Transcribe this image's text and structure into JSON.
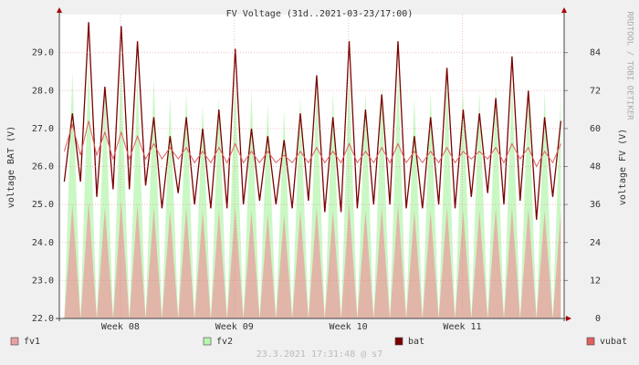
{
  "chart_data": {
    "type": "line",
    "title": "FV Voltage (31d..2021-03-23/17:00)",
    "y_label": "voltage BAT (V)",
    "y2_label": "voltage FV (V)",
    "watermark": "RRDTOOL / TOBI OETIKER",
    "footer": "23.3.2021 17:31:48 @ s7",
    "grid": true,
    "xlim": [
      0,
      31
    ],
    "xticks": [
      {
        "value": 3.75,
        "label": "Week 08"
      },
      {
        "value": 10.75,
        "label": "Week 09"
      },
      {
        "value": 17.75,
        "label": "Week 10"
      },
      {
        "value": 24.75,
        "label": "Week 11"
      }
    ],
    "ylim": [
      22,
      30
    ],
    "yticks": [
      {
        "value": 22,
        "label": "22.0"
      },
      {
        "value": 23,
        "label": "23.0"
      },
      {
        "value": 24,
        "label": "24.0"
      },
      {
        "value": 25,
        "label": "25.0"
      },
      {
        "value": 26,
        "label": "26.0"
      },
      {
        "value": 27,
        "label": "27.0"
      },
      {
        "value": 28,
        "label": "28.0"
      },
      {
        "value": 29,
        "label": "29.0"
      }
    ],
    "y2lim": [
      0,
      96
    ],
    "y2ticks": [
      0,
      12,
      24,
      36,
      48,
      60,
      72,
      84
    ],
    "x": [
      0.3,
      0.8,
      1.3,
      1.8,
      2.3,
      2.8,
      3.3,
      3.8,
      4.3,
      4.8,
      5.3,
      5.8,
      6.3,
      6.8,
      7.3,
      7.8,
      8.3,
      8.8,
      9.3,
      9.8,
      10.3,
      10.8,
      11.3,
      11.8,
      12.3,
      12.8,
      13.3,
      13.8,
      14.3,
      14.8,
      15.3,
      15.8,
      16.3,
      16.8,
      17.3,
      17.8,
      18.3,
      18.8,
      19.3,
      19.8,
      20.3,
      20.8,
      21.3,
      21.8,
      22.3,
      22.8,
      23.3,
      23.8,
      24.3,
      24.8,
      25.3,
      25.8,
      26.3,
      26.8,
      27.3,
      27.8,
      28.3,
      28.8,
      29.3,
      29.8,
      30.3,
      30.8
    ],
    "series": [
      {
        "name": "fv2",
        "color": "#b8f5b0",
        "type": "area",
        "axis": "y2",
        "values": [
          0,
          78,
          0,
          80,
          0,
          74,
          0,
          81,
          0,
          77,
          0,
          76,
          0,
          70,
          0,
          72,
          0,
          68,
          0,
          70,
          0,
          76,
          0,
          72,
          0,
          68,
          0,
          66,
          0,
          70,
          0,
          74,
          0,
          72,
          0,
          78,
          0,
          72,
          0,
          74,
          0,
          78,
          0,
          70,
          0,
          72,
          0,
          76,
          0,
          72,
          0,
          72,
          0,
          74,
          0,
          76,
          0,
          74,
          0,
          72,
          0,
          72
        ]
      },
      {
        "name": "fv1",
        "color": "#e8a0a0",
        "type": "area",
        "axis": "y2",
        "values": [
          0,
          36,
          0,
          37,
          0,
          35,
          0,
          37,
          0,
          36,
          0,
          35,
          0,
          34,
          0,
          35,
          0,
          34,
          0,
          34,
          0,
          35,
          0,
          34,
          0,
          33,
          0,
          33,
          0,
          34,
          0,
          35,
          0,
          34,
          0,
          36,
          0,
          34,
          0,
          35,
          0,
          36,
          0,
          34,
          0,
          34,
          0,
          35,
          0,
          34,
          0,
          34,
          0,
          35,
          0,
          35,
          0,
          35,
          0,
          34,
          0,
          34
        ]
      },
      {
        "name": "bat",
        "color": "#7a0000",
        "type": "line",
        "values": [
          25.6,
          27.4,
          25.6,
          29.8,
          25.2,
          28.1,
          25.4,
          29.7,
          25.4,
          29.3,
          25.5,
          27.3,
          24.9,
          26.8,
          25.3,
          27.3,
          25.0,
          27.0,
          24.9,
          27.5,
          24.9,
          29.1,
          25.0,
          27.0,
          25.1,
          26.8,
          25.0,
          26.7,
          24.9,
          27.4,
          25.1,
          28.4,
          24.8,
          27.3,
          24.8,
          29.3,
          24.9,
          27.5,
          25.0,
          27.9,
          25.0,
          29.3,
          24.9,
          26.8,
          24.9,
          27.3,
          25.0,
          28.6,
          24.9,
          27.5,
          25.2,
          27.4,
          25.3,
          27.8,
          25.0,
          28.9,
          25.1,
          28.0,
          24.6,
          27.3,
          25.2,
          27.2
        ]
      },
      {
        "name": "vubat",
        "color": "#e06060",
        "type": "line",
        "values": [
          26.4,
          27.1,
          26.3,
          27.2,
          26.3,
          26.9,
          26.2,
          26.9,
          26.2,
          26.8,
          26.2,
          26.6,
          26.2,
          26.5,
          26.2,
          26.5,
          26.1,
          26.4,
          26.1,
          26.5,
          26.1,
          26.6,
          26.1,
          26.4,
          26.1,
          26.4,
          26.1,
          26.3,
          26.1,
          26.4,
          26.1,
          26.5,
          26.1,
          26.4,
          26.1,
          26.6,
          26.1,
          26.4,
          26.1,
          26.5,
          26.1,
          26.6,
          26.1,
          26.4,
          26.1,
          26.4,
          26.1,
          26.5,
          26.1,
          26.4,
          26.2,
          26.4,
          26.2,
          26.5,
          26.1,
          26.6,
          26.2,
          26.5,
          26.0,
          26.4,
          26.1,
          26.6
        ]
      }
    ]
  }
}
